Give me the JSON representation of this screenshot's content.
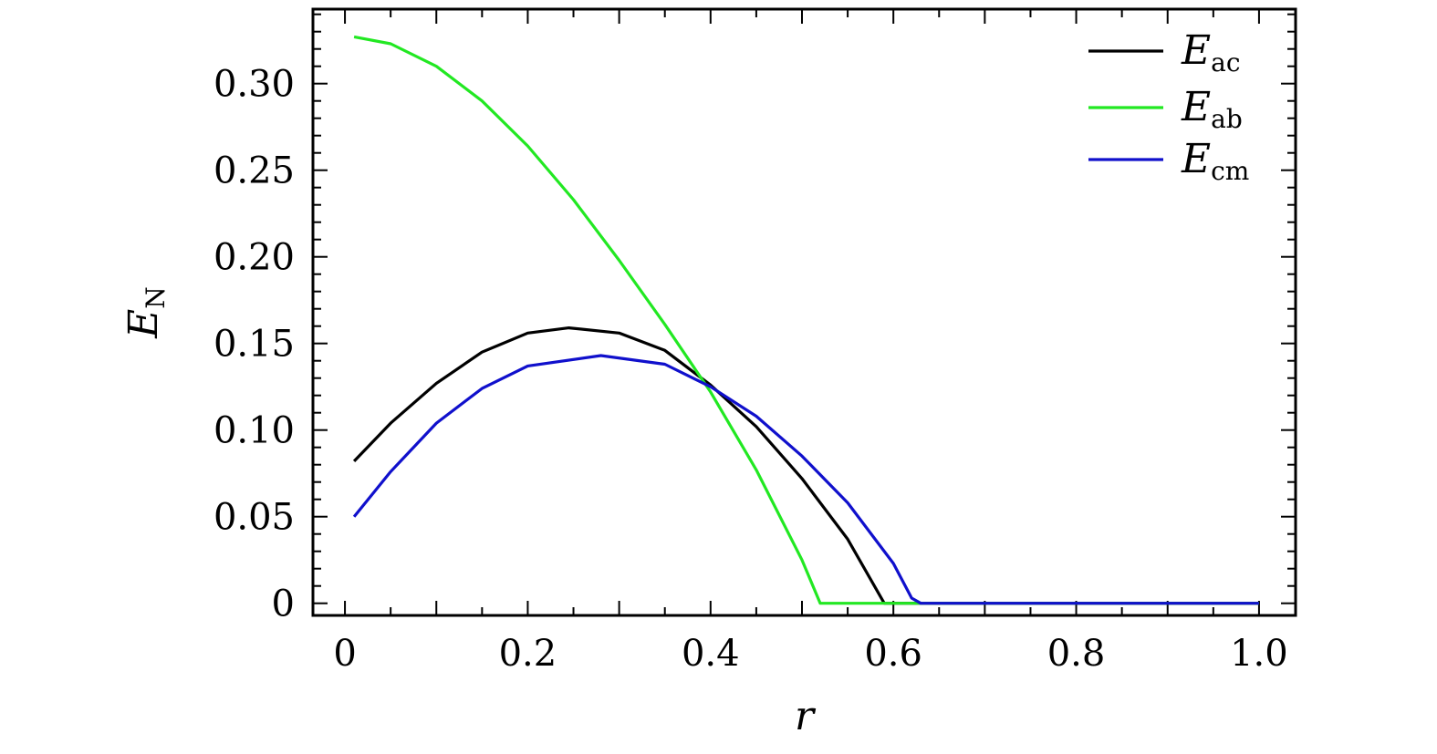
{
  "chart_data": {
    "type": "line",
    "xlabel": "r",
    "ylabel": {
      "main": "E",
      "sub": "N"
    },
    "xlim": [
      -0.035,
      1.04
    ],
    "ylim": [
      -0.007,
      0.343
    ],
    "xticks": [
      0,
      0.2,
      0.4,
      0.6,
      0.8,
      1.0
    ],
    "xtick_labels": [
      "0",
      "0.2",
      "0.4",
      "0.6",
      "0.8",
      "1.0"
    ],
    "yticks": [
      0,
      0.05,
      0.1,
      0.15,
      0.2,
      0.25,
      0.3
    ],
    "ytick_labels": [
      "0",
      "0.05",
      "0.10",
      "0.15",
      "0.20",
      "0.25",
      "0.30"
    ],
    "grid": false,
    "legend_position": "top-right",
    "series": [
      {
        "name": "E",
        "sub": "ac",
        "color": "#000000",
        "x": [
          0.01,
          0.05,
          0.1,
          0.15,
          0.2,
          0.245,
          0.3,
          0.35,
          0.4,
          0.45,
          0.5,
          0.55,
          0.59,
          0.62,
          0.7,
          0.8,
          0.9,
          1.0
        ],
        "y": [
          0.082,
          0.104,
          0.127,
          0.145,
          0.156,
          0.159,
          0.156,
          0.146,
          0.126,
          0.102,
          0.072,
          0.037,
          0.0,
          0.0,
          0.0,
          0.0,
          0.0,
          0.0
        ]
      },
      {
        "name": "E",
        "sub": "ab",
        "color": "#22e822",
        "x": [
          0.01,
          0.05,
          0.1,
          0.15,
          0.2,
          0.25,
          0.3,
          0.35,
          0.4,
          0.45,
          0.5,
          0.52,
          0.55,
          0.6,
          0.7,
          0.8,
          0.9,
          1.0
        ],
        "y": [
          0.327,
          0.323,
          0.31,
          0.29,
          0.264,
          0.233,
          0.198,
          0.161,
          0.122,
          0.077,
          0.025,
          0.0,
          0.0,
          0.0,
          0.0,
          0.0,
          0.0,
          0.0
        ]
      },
      {
        "name": "E",
        "sub": "cm",
        "color": "#1010cc",
        "x": [
          0.01,
          0.05,
          0.1,
          0.15,
          0.2,
          0.28,
          0.35,
          0.4,
          0.45,
          0.5,
          0.55,
          0.6,
          0.62,
          0.63,
          0.7,
          0.8,
          0.9,
          1.0
        ],
        "y": [
          0.05,
          0.076,
          0.104,
          0.124,
          0.137,
          0.143,
          0.138,
          0.125,
          0.108,
          0.085,
          0.058,
          0.023,
          0.003,
          0.0,
          0.0,
          0.0,
          0.0,
          0.0
        ]
      }
    ]
  }
}
